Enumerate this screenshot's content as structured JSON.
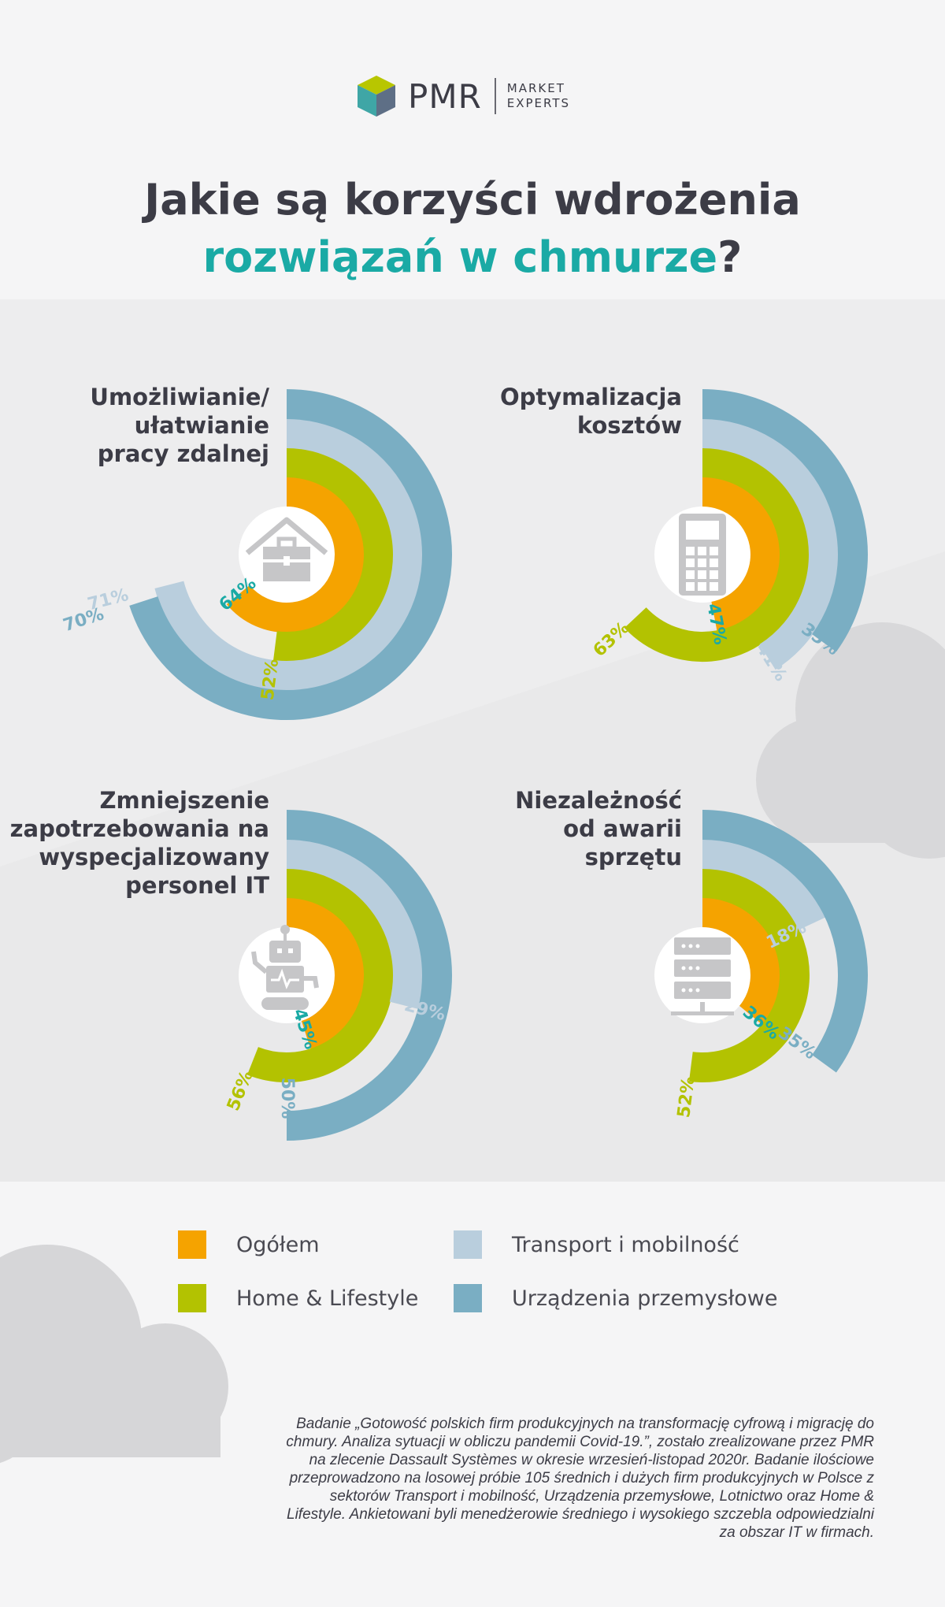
{
  "header": {
    "logo": {
      "brand": "PMR",
      "tagline_1": "MARKET",
      "tagline_2": "EXPERTS"
    },
    "title_line1": "Jakie są korzyści wdrożenia",
    "title_line2_highlight": "rozwiązań w chmurze",
    "title_line2_end": "?"
  },
  "colors": {
    "ogolem": "#f5a300",
    "home_lifestyle": "#b3c201",
    "transport": "#b9cedd",
    "urzadzenia": "#7aaec3",
    "teal_text": "#1aaaa5",
    "dark_text": "#3c3c46"
  },
  "chart_data": [
    {
      "type": "radial-bar",
      "title": "Umożliwianie/\nułatwianie\npracy zdalnej",
      "icon": "home-office-icon",
      "series": [
        {
          "name": "Ogółem",
          "value": 64,
          "label": "64%"
        },
        {
          "name": "Home & Lifestyle",
          "value": 52,
          "label": "52%"
        },
        {
          "name": "Transport i mobilność",
          "value": 71,
          "label": "71%"
        },
        {
          "name": "Urządzenia przemysłowe",
          "value": 70,
          "label": "70%"
        }
      ]
    },
    {
      "type": "radial-bar",
      "title": "Optymalizacja\nkosztów",
      "icon": "calculator-icon",
      "series": [
        {
          "name": "Ogółem",
          "value": 47,
          "label": "47%"
        },
        {
          "name": "Home & Lifestyle",
          "value": 63,
          "label": "63%"
        },
        {
          "name": "Transport i mobilność",
          "value": 41,
          "label": "41%"
        },
        {
          "name": "Urządzenia przemysłowe",
          "value": 35,
          "label": "35%"
        }
      ]
    },
    {
      "type": "radial-bar",
      "title": "Zmniejszenie\nzapotrzebowania na\nwyspecjalizowany\npersonel IT",
      "icon": "robot-icon",
      "series": [
        {
          "name": "Ogółem",
          "value": 45,
          "label": "45%"
        },
        {
          "name": "Home & Lifestyle",
          "value": 56,
          "label": "56%"
        },
        {
          "name": "Transport i mobilność",
          "value": 29,
          "label": "29%"
        },
        {
          "name": "Urządzenia przemysłowe",
          "value": 50,
          "label": "50%"
        }
      ]
    },
    {
      "type": "radial-bar",
      "title": "Niezależność\nod awarii\nsprzętu",
      "icon": "server-icon",
      "series": [
        {
          "name": "Ogółem",
          "value": 36,
          "label": "36%"
        },
        {
          "name": "Home & Lifestyle",
          "value": 52,
          "label": "52%"
        },
        {
          "name": "Transport i mobilność",
          "value": 18,
          "label": "18%"
        },
        {
          "name": "Urządzenia przemysłowe",
          "value": 35,
          "label": "35%"
        }
      ]
    }
  ],
  "legend": [
    {
      "label": "Ogółem"
    },
    {
      "label": "Transport i mobilność"
    },
    {
      "label": "Home & Lifestyle"
    },
    {
      "label": "Urządzenia przemysłowe"
    }
  ],
  "footnote": "Badanie „Gotowość polskich firm produkcyjnych na transformację cyfrową i migrację do chmury. Analiza sytuacji w obliczu pandemii Covid-19.”, zostało zrealizowane przez PMR na zlecenie Dassault Systèmes w okresie wrzesień-listopad 2020r. Badanie ilościowe przeprowadzono na losowej próbie 105 średnich i dużych firm produkcyjnych w Polsce z sektorów Transport i mobilność, Urządzenia przemysłowe, Lotnictwo oraz Home & Lifestyle. Ankietowani byli menedżerowie średniego i wysokiego szczebla odpowiedzialni za obszar IT w firmach."
}
